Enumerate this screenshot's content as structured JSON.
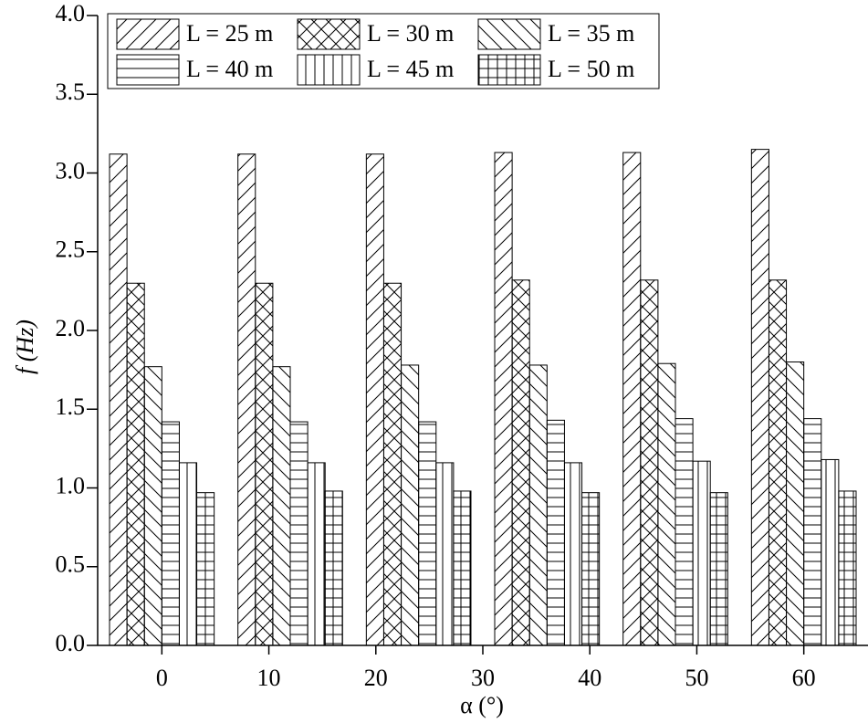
{
  "chart_data": {
    "type": "bar",
    "xlabel": "α (°)",
    "ylabel": "f (Hz)",
    "x": [
      0,
      12,
      24,
      36,
      48,
      60
    ],
    "xlim": [
      -6,
      66
    ],
    "xticks": [
      0,
      10,
      20,
      30,
      40,
      50,
      60
    ],
    "ylim": [
      0,
      4
    ],
    "yticks": [
      {
        "value": 0,
        "label": "0.0"
      },
      0.5,
      {
        "value": 1,
        "label": "1.0"
      },
      1.5,
      {
        "value": 2,
        "label": "2.0"
      },
      2.5,
      {
        "value": 3,
        "label": "3.0"
      },
      3.5,
      {
        "value": 4,
        "label": "4.0"
      }
    ],
    "legend": "upper left",
    "series": [
      {
        "name": "L = 25 m",
        "color": "#000000",
        "hatch": "forward",
        "values": [
          3.12,
          3.12,
          3.12,
          3.13,
          3.13,
          3.15
        ]
      },
      {
        "name": "L = 30 m",
        "color": "#000000",
        "hatch": "cross",
        "values": [
          2.3,
          2.3,
          2.3,
          2.32,
          2.32,
          2.32
        ]
      },
      {
        "name": "L = 35 m",
        "color": "#000000",
        "hatch": "back",
        "values": [
          1.77,
          1.77,
          1.78,
          1.78,
          1.79,
          1.8
        ]
      },
      {
        "name": "L = 40 m",
        "color": "#000000",
        "hatch": "horizontal",
        "values": [
          1.42,
          1.42,
          1.42,
          1.43,
          1.44,
          1.44
        ]
      },
      {
        "name": "L = 45 m",
        "color": "#000000",
        "hatch": "vertical",
        "values": [
          1.16,
          1.16,
          1.16,
          1.16,
          1.17,
          1.18
        ]
      },
      {
        "name": "L = 50 m",
        "color": "#000000",
        "hatch": "grid",
        "values": [
          0.97,
          0.98,
          0.98,
          0.97,
          0.97,
          0.98
        ]
      }
    ]
  }
}
